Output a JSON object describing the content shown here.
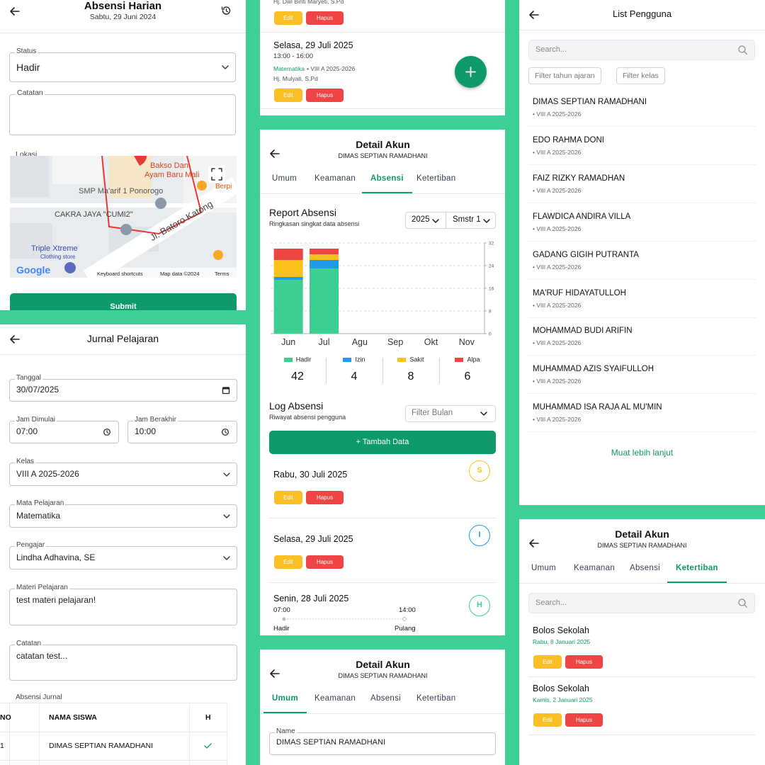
{
  "absensi_harian": {
    "title": "Absensi Harian",
    "date": "Sabtu, 29 Juni 2024",
    "status_label": "Status",
    "status_value": "Hadir",
    "catatan_label": "Catatan",
    "lokasi_label": "Lokasi",
    "map_labels": {
      "poi_1": "Bakso Dan",
      "poi_1b": "Ayam Baru Mali",
      "poi_2": "Berpi",
      "school": "SMP Ma'arif 1 Ponorogo",
      "shop": "CAKRA JAYA \"CUMI2\"",
      "road": "Jl. Batoro Katong",
      "store": "Triple Xtreme",
      "store_type": "Clothing store",
      "brand": "Google",
      "shortcuts": "Keyboard shortcuts",
      "map_data": "Map data ©2024",
      "terms": "Terms"
    },
    "submit": "Submit"
  },
  "jurnal_pelajaran": {
    "title": "Jurnal Pelajaran",
    "fields": [
      {
        "label": "Tanggal",
        "value": "30/07/2025"
      },
      {
        "label": "Jam Dimulai",
        "value": "07:00"
      },
      {
        "label": "Jam Berakhir",
        "value": "10:00"
      },
      {
        "label": "Kelas",
        "value": "VIII A 2025-2026"
      },
      {
        "label": "Mata Pelajaran",
        "value": "Matematika"
      },
      {
        "label": "Pengajar",
        "value": "Lindha Adhavina, SE"
      },
      {
        "label": "Materi Pelajaran",
        "value": "test materi pelajaran!"
      },
      {
        "label": "Catatan",
        "value": "catatan test..."
      }
    ],
    "table": {
      "label": "Absensi Jurnal",
      "headers": [
        "NO",
        "NAMA SISWA",
        "H"
      ],
      "rows": [
        [
          1,
          "DIMAS SEPTIAN RAMADHANI"
        ]
      ]
    }
  },
  "jadwal_list": {
    "items": [
      {
        "teacher": "Hj. Dwi Binti Maryeti, S.Pd",
        "actions": [
          "Edit",
          "Hapus"
        ]
      },
      {
        "date": "Selasa, 29 Juli 2025",
        "time": "13:00 - 16:00",
        "subject": "Matematika",
        "class": "• VIII A 2025-2026",
        "teacher": "Hj. Mulyati, S.Pd",
        "actions": [
          "Edit",
          "Hapus"
        ]
      }
    ]
  },
  "detail_akun_absensi": {
    "title": "Detail Akun",
    "user": "DIMAS SEPTIAN RAMADHANI",
    "tabs": [
      "Umum",
      "Keamanan",
      "Absensi",
      "Ketertiban"
    ],
    "active_tab": 2,
    "report": {
      "title": "Report Absensi",
      "subtitle": "Ringkasan singkat data absensi",
      "year": "2025",
      "semester": "Smstr 1",
      "chart": {
        "type": "bar",
        "stacked": true,
        "categories": [
          "Jun",
          "Jul",
          "Agu",
          "Sep",
          "Okt",
          "Nov"
        ],
        "series": [
          {
            "name": "Hadir",
            "color": "#3ccf91",
            "values": [
              19,
              23,
              0,
              0,
              0,
              0
            ]
          },
          {
            "name": "Izin",
            "color": "#1e9be9",
            "values": [
              1,
              3,
              0,
              0,
              0,
              0
            ]
          },
          {
            "name": "Sakit",
            "color": "#fbc21a",
            "values": [
              6,
              2,
              0,
              0,
              0,
              0
            ]
          },
          {
            "name": "Alpa",
            "color": "#ef4444",
            "values": [
              4,
              2,
              0,
              0,
              0,
              0
            ]
          }
        ],
        "ylim": [
          0,
          32
        ],
        "yticks": [
          0,
          8,
          16,
          24,
          32
        ],
        "grid": true
      },
      "totals": [
        42,
        4,
        8,
        6
      ]
    },
    "log": {
      "title": "Log Absensi",
      "subtitle": "Riwayat absensi pengguna",
      "filter": "Filter Bulan",
      "add_button": "+ Tambah Data",
      "entries": [
        {
          "date": "Rabu, 30 Juli 2025",
          "status": "S",
          "status_color": "#fbc21a",
          "actions": [
            "Edit",
            "Hapus"
          ]
        },
        {
          "date": "Selasa, 29 Juli 2025",
          "status": "I",
          "status_color": "#1e9be9",
          "actions": [
            "Edit",
            "Hapus"
          ]
        },
        {
          "date": "Senin, 28 Juli 2025",
          "status": "H",
          "status_color": "#3ccf91",
          "check_in": "07:00",
          "check_out": "14:00",
          "check_in_label": "Hadir",
          "check_out_label": "Pulang"
        }
      ]
    }
  },
  "detail_akun_umum": {
    "title": "Detail Akun",
    "user": "DIMAS SEPTIAN RAMADHANI",
    "tabs": [
      "Umum",
      "Keamanan",
      "Absensi",
      "Ketertiban"
    ],
    "active_tab": 0,
    "name_label": "Name",
    "name_value": "DIMAS SEPTIAN RAMADHANI"
  },
  "list_pengguna": {
    "title": "List Pengguna",
    "search": "Search...",
    "filters": [
      "Filter tahun ajaran",
      "Filter kelas"
    ],
    "users": [
      {
        "name": "DIMAS SEPTIAN RAMADHANI",
        "class": "• VIII A 2025-2026"
      },
      {
        "name": "EDO RAHMA DONI",
        "class": "• VIII A 2025-2026"
      },
      {
        "name": "FAIZ RIZKY RAMADHAN",
        "class": "• VIII A 2025-2026"
      },
      {
        "name": "FLAWDICA ANDIRA VILLA",
        "class": "• VIII A 2025-2026"
      },
      {
        "name": "GADANG GIGIH PUTRANTA",
        "class": "• VIII A 2025-2026"
      },
      {
        "name": "MA'RUF HIDAYATULLOH",
        "class": "• VIII A 2025-2026"
      },
      {
        "name": "MOHAMMAD BUDI ARIFIN",
        "class": "• VIII A 2025-2026"
      },
      {
        "name": "MUHAMMAD AZIS SYAIFULLOH",
        "class": "• VIII A 2025-2026"
      },
      {
        "name": "MUHAMMAD ISA RAJA AL MU'MIN",
        "class": "• VIII A 2025-2026"
      }
    ],
    "load_more": "Muat lebih lanjut"
  },
  "detail_akun_ketertiban": {
    "title": "Detail Akun",
    "user": "DIMAS SEPTIAN RAMADHANI",
    "tabs": [
      "Umum",
      "Keamanan",
      "Absensi",
      "Ketertiban"
    ],
    "active_tab": 3,
    "search": "Search...",
    "items": [
      {
        "type": "Bolos Sekolah",
        "date": "Rabu, 8 Januari 2025",
        "actions": [
          "Edit",
          "Hapus"
        ]
      },
      {
        "type": "Bolos Sekolah",
        "date": "Kamis, 2 Januari 2025",
        "actions": [
          "Edit",
          "Hapus"
        ]
      }
    ]
  }
}
